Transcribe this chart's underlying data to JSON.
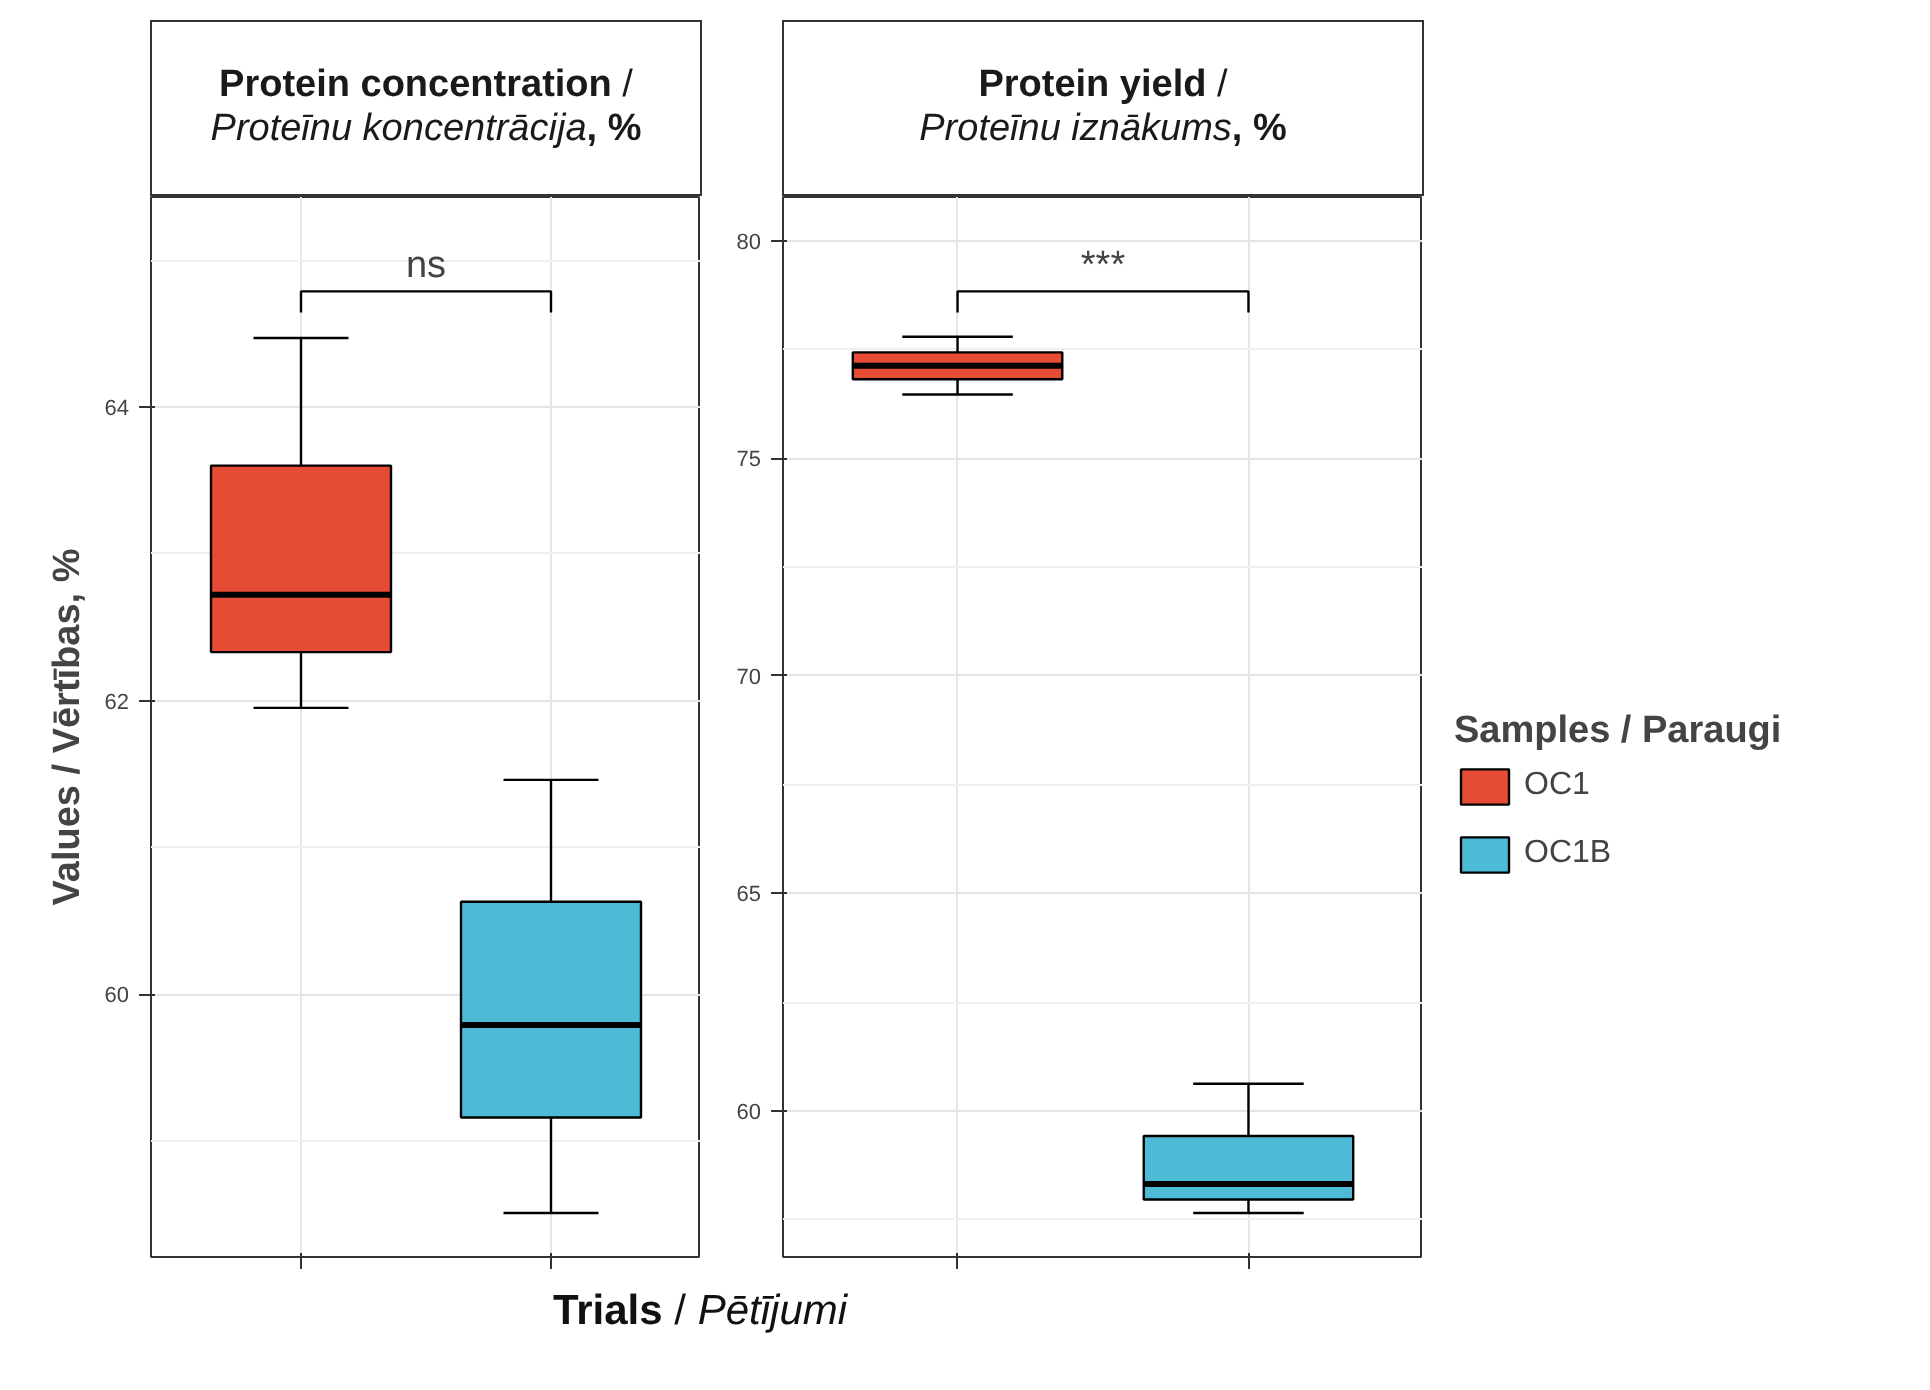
{
  "chart_data": [
    {
      "type": "box",
      "title": "Protein concentration / Proteīnu koncentrācija, %",
      "xlabel": "Trials / Pētījumi",
      "ylabel": "Values / Vērtības, %",
      "categories": [
        null,
        null
      ],
      "series": [
        {
          "color": "#e64b35",
          "boxes": [
            {
              "low": 61.95,
              "q1": 62.33,
              "median": 62.72,
              "q3": 63.6,
              "high": 64.47
            },
            null
          ]
        },
        {
          "color": "#4dbbd5",
          "boxes": [
            null,
            {
              "low": 58.51,
              "q1": 59.16,
              "median": 59.79,
              "q3": 60.63,
              "high": 61.46
            }
          ]
        }
      ],
      "ylim": [
        58.21,
        65.43
      ],
      "yticks": [
        60,
        62,
        64
      ],
      "grid": true,
      "tick_labels": "y",
      "annotations": [
        "ns"
      ]
    },
    {
      "type": "box",
      "title": "Protein yield / Proteīnu iznākums, %",
      "legend_title": "Samples / Paraugi",
      "categories": [
        null,
        null
      ],
      "series": [
        {
          "name": "OC1",
          "color": "#e64b35",
          "boxes": [
            {
              "low": 76.46,
              "q1": 76.81,
              "median": 77.12,
              "q3": 77.43,
              "high": 77.79
            },
            null
          ]
        },
        {
          "name": "OC1B",
          "color": "#4dbbd5",
          "boxes": [
            null,
            {
              "low": 57.65,
              "q1": 57.96,
              "median": 58.32,
              "q3": 59.42,
              "high": 60.62
            }
          ]
        }
      ],
      "ylim": [
        56.64,
        81.0
      ],
      "yticks": [
        60,
        65,
        70,
        75,
        80
      ],
      "grid": true,
      "tick_labels": "y",
      "legend": "right",
      "annotations": [
        "***"
      ]
    }
  ]
}
